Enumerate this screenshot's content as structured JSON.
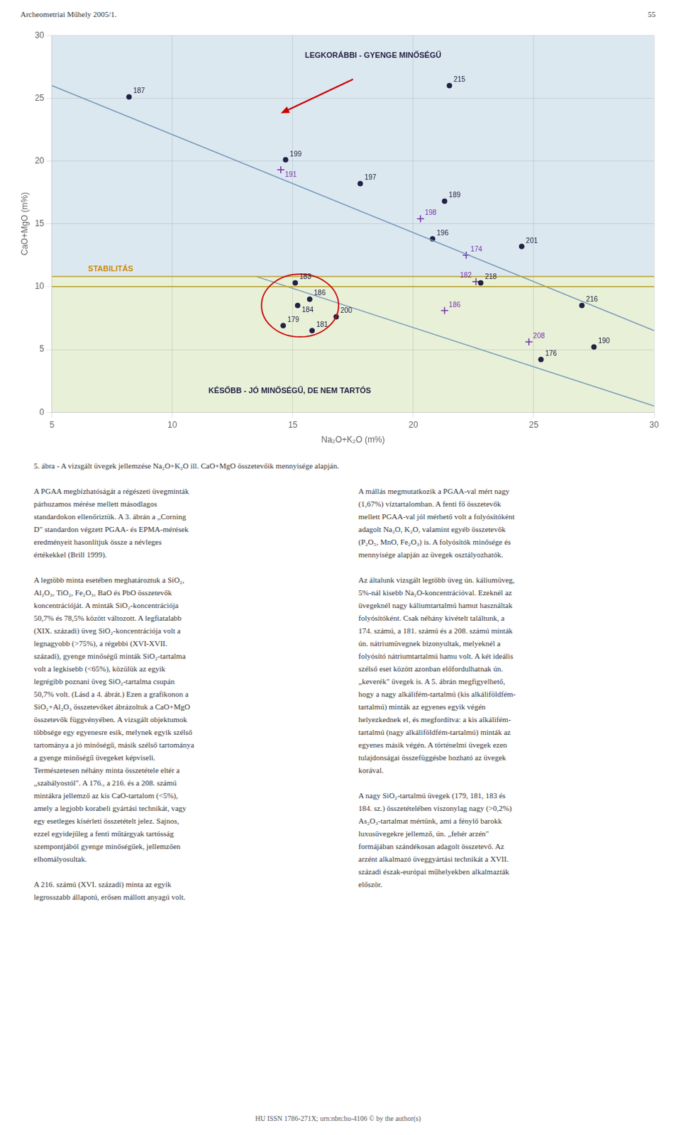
{
  "page_header": "Archeometriai Műhely 2005/1.",
  "page_number": "55",
  "caption": "5. ábra - A vizsgált üvegek jellemzése Na₂O+K₂O ill. CaO+MgO összetevőik mennyisége alapján.",
  "text_columns": [
    [
      [
        "A PGAA megbízhatóságát a régészeti üvegminták",
        "párhuzamos mérése mellett másodlagos",
        "standardokon ellenőriztük. A 3. ábrán a „Corning",
        "D\" standardon végzett PGAA- és EPMA-mérések",
        "eredményeit hasonlítjuk össze a névleges",
        "értékekkel (Brill 1999)."
      ],
      [
        "A legtöbb minta esetében meghatároztuk a SiO₂,",
        "Al₂O₃, TiO₂, Fe₂O₃, BaO és PbO összetevők",
        "koncentrációját. A minták SiO₂-koncentrációja",
        "50,7% és 78,5% között változott. A legfiatalabb",
        "(XIX. századi) üveg SiO₂-koncentrációja volt a",
        "legnagyobb (>75%), a régebbi (XVI-XVII.",
        "századi), gyenge minőségű minták SiO₂-tartalma",
        "volt a legkisebb (<65%), közülük az egyik",
        "legrégibb poznani üveg SiO₂-tartalma csupán",
        "50,7% volt. (Lásd a 4. ábrát.) Ezen a grafikonon a",
        "SiO₂+Al₂O₃ összetevőket ábrázoltuk a CaO+MgO",
        "összetevők függvényében. A vizsgált objektumok",
        "többsége egy egyenesre esik, melynek egyik szélső",
        "tartománya a jó minőségű, másik szélső tartománya",
        "a gyenge minőségű üvegeket képviseli.",
        "Természetesen néhány minta összetétele eltér a",
        "„szabályostól\". A 176., a 216. és a 208. számú",
        "mintákra jellemző az kis CaO-tartalom (<5%),",
        "amely a legjobb korabeli gyártási technikát, vagy",
        "egy esetleges kísérleti összetételt jelez. Sajnos,",
        "ezzel egyidejűleg a fenti műtárgyak tartósság",
        "szempontjából gyenge minőségűek, jellemzően",
        "elhomályosultak."
      ],
      [
        "A 216. számú (XVI. századi) minta az egyik",
        "legrosszabb állapotú, erősen mállott anyagú volt."
      ]
    ],
    [
      [
        "A mállás megmutatkozik a PGAA-val mért nagy",
        "(1,67%) víztartalomban. A fenti fő összetevők",
        "mellett PGAA-val jól mérhető volt a folyósítóként",
        "adagolt Na₂O, K₂O, valamint egyéb összetevők",
        "(P₂O₅, MnO, Fe₂O₃) is. A folyósítók minősége és",
        "mennyisége alapján az üvegek osztályozhatók."
      ],
      [
        "Az általunk vizsgált legtöbb üveg ún. káliumüveg,",
        "5%-nál kisebb Na₂O-koncentrációval. Ezeknél az",
        "üvegeknél nagy káliumtartalmú hamut használtak",
        "folyósítóként. Csak néhány kivételt találtunk, a",
        "174. számú, a 181. számú és a 208. számú minták",
        "ún. nátriumüvegnek bizonyultak, melyeknél a",
        "folyósító nátriumtartalmú hamu volt. A két ideális",
        "szélső eset között azonban előfordulhatnak ún.",
        "„keverék\" üvegek is. A 5. ábrán megfigyelhető,",
        "hogy a nagy alkálifém-tartalmú (kis alkáliföldfém-",
        "tartalmú) minták az egyenes egyik végén",
        "helyezkednek el, és megfordítva: a kis alkálifém-",
        "tartalmú (nagy alkáliföldfém-tartalmú) minták az",
        "egyenes másik végén. A történelmi üvegek ezen",
        "tulajdonságai összefüggésbe hozható az üvegek",
        "korával."
      ],
      [
        "A nagy SiO₂-tartalmú üvegek (179, 181, 183 és",
        "184. sz.) összetételében viszonylag nagy (>0,2%)",
        "As₂O₃-tartalmat mértünk, ami a fénylő barokk",
        "luxusüvegekre jellemző, ún. „fehér arzén\"",
        "formájában szándékosan adagolt összetevő. Az",
        "arzént alkalmazó üveggyártási technikát a XVII.",
        "századi észak-európai műhelyekben alkalmazták",
        "először."
      ]
    ]
  ],
  "footer": "HU ISSN 1786-271X; urn:nbn:hu-4106 © by the author(s)",
  "chart_data": {
    "type": "scatter",
    "xlabel": "Na₂O+K₂O (m%)",
    "ylabel": "CaO+MgO (m%)",
    "xlim": [
      5,
      30
    ],
    "ylim": [
      0,
      30
    ],
    "xticks": [
      5,
      10,
      15,
      20,
      25,
      30
    ],
    "yticks": [
      0,
      5,
      10,
      15,
      20,
      25,
      30
    ],
    "grid": true,
    "bands": [
      {
        "from": 0,
        "to": 10.8,
        "color": "#e8f0d8"
      },
      {
        "from": 10.8,
        "to": 30,
        "color": "#dce8f0"
      }
    ],
    "series": [
      {
        "type": "line",
        "line_style": "solid",
        "color": "#b8a030",
        "x": [
          5,
          30
        ],
        "values": [
          10.8,
          10.8
        ]
      },
      {
        "type": "line",
        "line_style": "solid",
        "color": "#b8a030",
        "x": [
          5,
          30
        ],
        "values": [
          10.0,
          10.0
        ]
      },
      {
        "type": "line",
        "line_style": "solid",
        "color": "#7799bb",
        "x": [
          5,
          30
        ],
        "values": [
          26.0,
          6.5
        ]
      },
      {
        "type": "line",
        "line_style": "solid",
        "color": "#7799bb",
        "x": [
          13.5,
          30
        ],
        "values": [
          10.8,
          0.5
        ]
      },
      {
        "type": "scatter",
        "marker": "circle",
        "color": "#222244",
        "x": [
          8.2,
          14.7,
          17.8,
          21.3,
          20.8,
          24.5,
          22.8,
          27.0,
          27.5,
          25.3,
          16.8,
          21.5
        ],
        "values": [
          25.1,
          20.1,
          18.2,
          16.8,
          13.8,
          13.2,
          10.3,
          8.5,
          5.2,
          4.2,
          7.6,
          26.0
        ],
        "point_labels": [
          "187",
          "199",
          "197",
          "189",
          "196",
          "201",
          "218",
          "216",
          "190",
          "176",
          "200",
          "215"
        ]
      },
      {
        "type": "scatter",
        "marker": "plus",
        "color": "#7733aa",
        "x": [
          14.5,
          20.3,
          22.2,
          22.6,
          21.3,
          24.8
        ],
        "values": [
          19.3,
          15.4,
          12.5,
          10.4,
          8.1,
          5.6
        ],
        "point_labels": [
          "191",
          "198",
          "174",
          "182",
          "186",
          "208"
        ]
      },
      {
        "type": "scatter",
        "marker": "circle",
        "color": "#222244",
        "x": [
          15.1,
          15.2,
          15.7,
          14.6,
          15.8
        ],
        "values": [
          10.3,
          8.5,
          9.0,
          6.9,
          6.5
        ],
        "point_labels": [
          "183",
          "184",
          "186",
          "179",
          "181"
        ]
      }
    ],
    "annotations": [
      {
        "text": "STABILITÁS",
        "x": 6.5,
        "y": 11.2,
        "color": "#cc8800"
      },
      {
        "text": "LEGKORÁBBI - GYENGE MINŐSÉGŰ",
        "x": 15.5,
        "y": 28.2,
        "color": "#222244"
      },
      {
        "text": "KÉSŐBB - JÓ MINŐSÉGŰ, DE NEM TARTÓS",
        "x": 11.5,
        "y": 1.5,
        "color": "#222244"
      }
    ],
    "arrows": [
      {
        "x1": 17.5,
        "y1": 26.5,
        "x2": 14.5,
        "y2": 23.8,
        "color": "#cc0000"
      }
    ],
    "ellipses": [
      {
        "cx": 15.3,
        "cy": 8.5,
        "width": 3.2,
        "height": 5.0,
        "color": "#cc0000"
      }
    ]
  }
}
